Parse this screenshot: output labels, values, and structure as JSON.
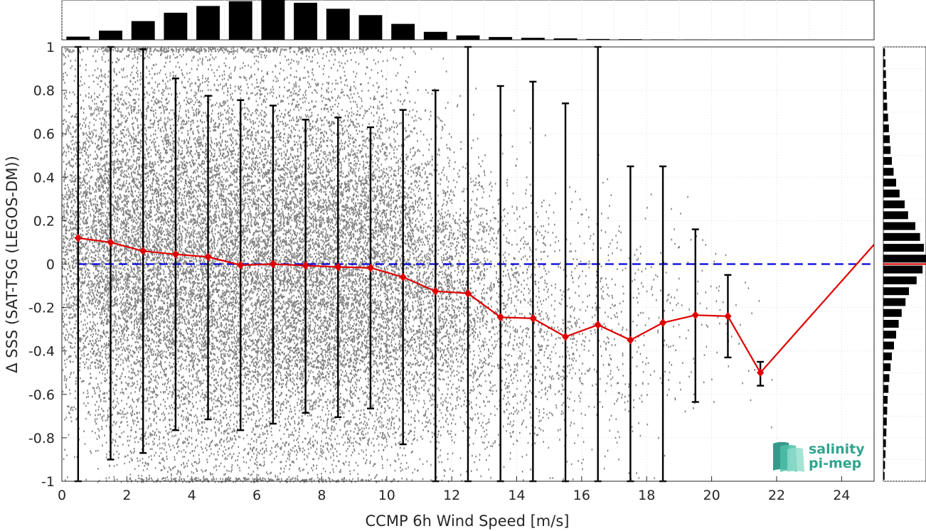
{
  "chart_data": {
    "type": "scatter",
    "xlabel": "CCMP 6h Wind Speed [m/s]",
    "ylabel": "Δ SSS (SAT-TSG (LEGOS-DM))",
    "xlim": [
      0,
      25
    ],
    "ylim": [
      -1,
      1
    ],
    "x_ticks": [
      "0",
      "2",
      "4",
      "6",
      "8",
      "10",
      "12",
      "14",
      "16",
      "18",
      "20",
      "22",
      "24"
    ],
    "y_ticks": [
      "-1",
      "-0.8",
      "-0.6",
      "-0.4",
      "-0.2",
      "0",
      "0.2",
      "0.4",
      "0.6",
      "0.8",
      "1"
    ],
    "grid": true,
    "zero_reference": 0,
    "scatter_color": "#808080",
    "errorbar_color": "#000000",
    "median_color": "#e00000",
    "reference_line_color": "#0000dd",
    "bin_centers": [
      0.5,
      1.5,
      2.5,
      3.5,
      4.5,
      5.5,
      6.5,
      7.5,
      8.5,
      9.5,
      10.5,
      11.5,
      12.5,
      13.5,
      14.5,
      15.5,
      16.5,
      17.5,
      18.5,
      19.5,
      20.5,
      21.5
    ],
    "median": [
      0.12,
      0.1,
      0.06,
      0.045,
      0.033,
      -0.005,
      0.0,
      -0.007,
      -0.013,
      -0.017,
      -0.06,
      -0.125,
      -0.135,
      -0.245,
      -0.25,
      -0.335,
      -0.28,
      -0.35,
      -0.27,
      -0.235,
      -0.24,
      -0.5
    ],
    "median_extension": {
      "x": 25,
      "y": 0.09
    },
    "err_upper": [
      1.0,
      1.0,
      0.99,
      0.855,
      0.775,
      0.755,
      0.73,
      0.665,
      0.675,
      0.63,
      0.71,
      0.8,
      1.0,
      0.82,
      0.84,
      0.74,
      1.0,
      0.45,
      0.45,
      0.16,
      -0.05,
      -0.45
    ],
    "err_lower": [
      -1.0,
      -0.9,
      -0.87,
      -0.765,
      -0.715,
      -0.765,
      -0.735,
      -0.685,
      -0.705,
      -0.665,
      -0.83,
      -1.0,
      -1.0,
      -1.0,
      -1.0,
      -1.0,
      -1.0,
      -1.0,
      -1.0,
      -0.635,
      -0.43,
      -0.56
    ],
    "scatter_density": [
      0.55,
      0.8,
      0.95,
      1.0,
      1.0,
      1.0,
      0.95,
      0.9,
      0.85,
      0.78,
      0.6,
      0.45,
      0.3,
      0.2,
      0.15,
      0.1,
      0.07,
      0.05,
      0.03,
      0.015,
      0.01,
      0.004
    ],
    "x_histogram": {
      "bin_centers": [
        0.5,
        1.5,
        2.5,
        3.5,
        4.5,
        5.5,
        6.5,
        7.5,
        8.5,
        9.5,
        10.5,
        11.5,
        12.5,
        13.5,
        14.5,
        15.5,
        16.5,
        17.5,
        18.5,
        19.5,
        20.5,
        21.5
      ],
      "values": [
        0.08,
        0.23,
        0.47,
        0.68,
        0.85,
        0.97,
        1.0,
        0.93,
        0.78,
        0.62,
        0.4,
        0.2,
        0.11,
        0.07,
        0.05,
        0.035,
        0.02,
        0.015,
        0.01,
        0.006,
        0.004,
        0.002
      ]
    },
    "y_histogram": {
      "bin_centers": [
        -0.975,
        -0.925,
        -0.875,
        -0.825,
        -0.775,
        -0.725,
        -0.675,
        -0.625,
        -0.575,
        -0.525,
        -0.475,
        -0.425,
        -0.375,
        -0.325,
        -0.275,
        -0.225,
        -0.175,
        -0.125,
        -0.075,
        -0.025,
        0.025,
        0.075,
        0.125,
        0.175,
        0.225,
        0.275,
        0.325,
        0.375,
        0.425,
        0.475,
        0.525,
        0.575,
        0.625,
        0.675,
        0.725,
        0.775,
        0.825,
        0.875,
        0.925,
        0.975
      ],
      "values": [
        0.03,
        0.04,
        0.05,
        0.06,
        0.07,
        0.08,
        0.09,
        0.1,
        0.12,
        0.14,
        0.17,
        0.2,
        0.25,
        0.3,
        0.36,
        0.43,
        0.52,
        0.6,
        0.78,
        0.92,
        1.0,
        0.95,
        0.86,
        0.75,
        0.58,
        0.5,
        0.38,
        0.3,
        0.24,
        0.2,
        0.17,
        0.15,
        0.13,
        0.11,
        0.09,
        0.08,
        0.07,
        0.06,
        0.05,
        0.04
      ]
    }
  },
  "logo": {
    "line1": "salinity",
    "line2": "pi-mep",
    "color": "#2fa58f"
  }
}
